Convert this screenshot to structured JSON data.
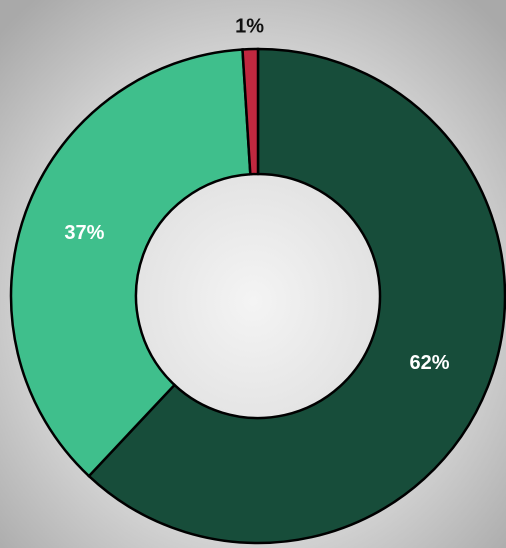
{
  "chart_data": {
    "type": "donut",
    "categories": [
      null,
      null,
      null
    ],
    "values": [
      62,
      37,
      1
    ],
    "value_labels": [
      "62%",
      "37%",
      "1%"
    ],
    "colors": [
      "#174d3a",
      "#3fbf8c",
      "#c0283f"
    ]
  }
}
